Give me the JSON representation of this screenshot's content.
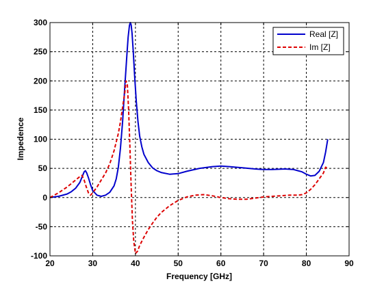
{
  "chart_data": {
    "type": "line",
    "title": "",
    "xlabel": "Frequency [GHz]",
    "ylabel": "Impedence",
    "xlim": [
      20,
      90
    ],
    "ylim": [
      -100,
      300
    ],
    "xticks": [
      20,
      30,
      40,
      50,
      60,
      70,
      80,
      90
    ],
    "yticks": [
      -100,
      -50,
      0,
      50,
      100,
      150,
      200,
      250,
      300
    ],
    "grid": true,
    "legend_position": "top-right",
    "series": [
      {
        "name": "Real [Z]",
        "color": "#0000cc",
        "style": "solid",
        "x": [
          20,
          22,
          24,
          25,
          26,
          27,
          27.5,
          28,
          28.3,
          28.6,
          29,
          29.5,
          30,
          31,
          32,
          33,
          34,
          35,
          35.5,
          36,
          36.5,
          37,
          37.5,
          38,
          38.3,
          38.6,
          38.8,
          39,
          39.2,
          39.5,
          39.8,
          40.2,
          40.6,
          41,
          41.5,
          42,
          43,
          44,
          45,
          46,
          48,
          50,
          52,
          55,
          58,
          60,
          62,
          65,
          68,
          70,
          72,
          75,
          77,
          78,
          79,
          80,
          81,
          82,
          83,
          84,
          84.5,
          85
        ],
        "y": [
          0,
          2,
          6,
          10,
          16,
          26,
          35,
          44,
          46,
          42,
          34,
          22,
          12,
          4,
          2,
          4,
          9,
          20,
          32,
          52,
          85,
          130,
          190,
          245,
          275,
          295,
          300,
          296,
          282,
          250,
          210,
          165,
          130,
          105,
          87,
          74,
          60,
          51,
          46,
          43,
          40,
          41,
          45,
          50,
          53,
          54,
          53,
          51,
          49,
          48,
          48,
          49,
          48,
          46,
          44,
          40,
          37,
          38,
          45,
          60,
          78,
          100
        ]
      },
      {
        "name": "Im [Z]",
        "color": "#dd0000",
        "style": "dashed",
        "x": [
          20,
          22,
          24,
          26,
          27,
          27.5,
          28,
          28.5,
          29,
          29.5,
          30,
          31,
          32,
          33,
          34,
          35,
          36,
          36.5,
          37,
          37.5,
          37.8,
          38.1,
          38.4,
          38.7,
          39,
          39.3,
          39.6,
          40,
          40.5,
          41,
          41.5,
          42,
          43,
          44,
          45,
          46,
          48,
          50,
          52,
          54,
          56,
          58,
          60,
          62,
          64,
          66,
          68,
          70,
          72,
          74,
          76,
          78,
          79,
          80,
          81,
          82,
          83,
          84,
          84.5,
          85
        ],
        "y": [
          0,
          8,
          18,
          30,
          36,
          38,
          30,
          18,
          8,
          4,
          8,
          18,
          30,
          42,
          58,
          80,
          110,
          130,
          155,
          180,
          200,
          195,
          150,
          90,
          20,
          -40,
          -75,
          -96,
          -92,
          -82,
          -75,
          -68,
          -55,
          -44,
          -34,
          -26,
          -14,
          -5,
          1,
          4,
          5,
          3,
          0,
          -2,
          -3,
          -3,
          -1,
          1,
          2,
          3,
          4,
          4,
          5,
          8,
          14,
          22,
          32,
          42,
          52,
          50
        ]
      }
    ]
  }
}
